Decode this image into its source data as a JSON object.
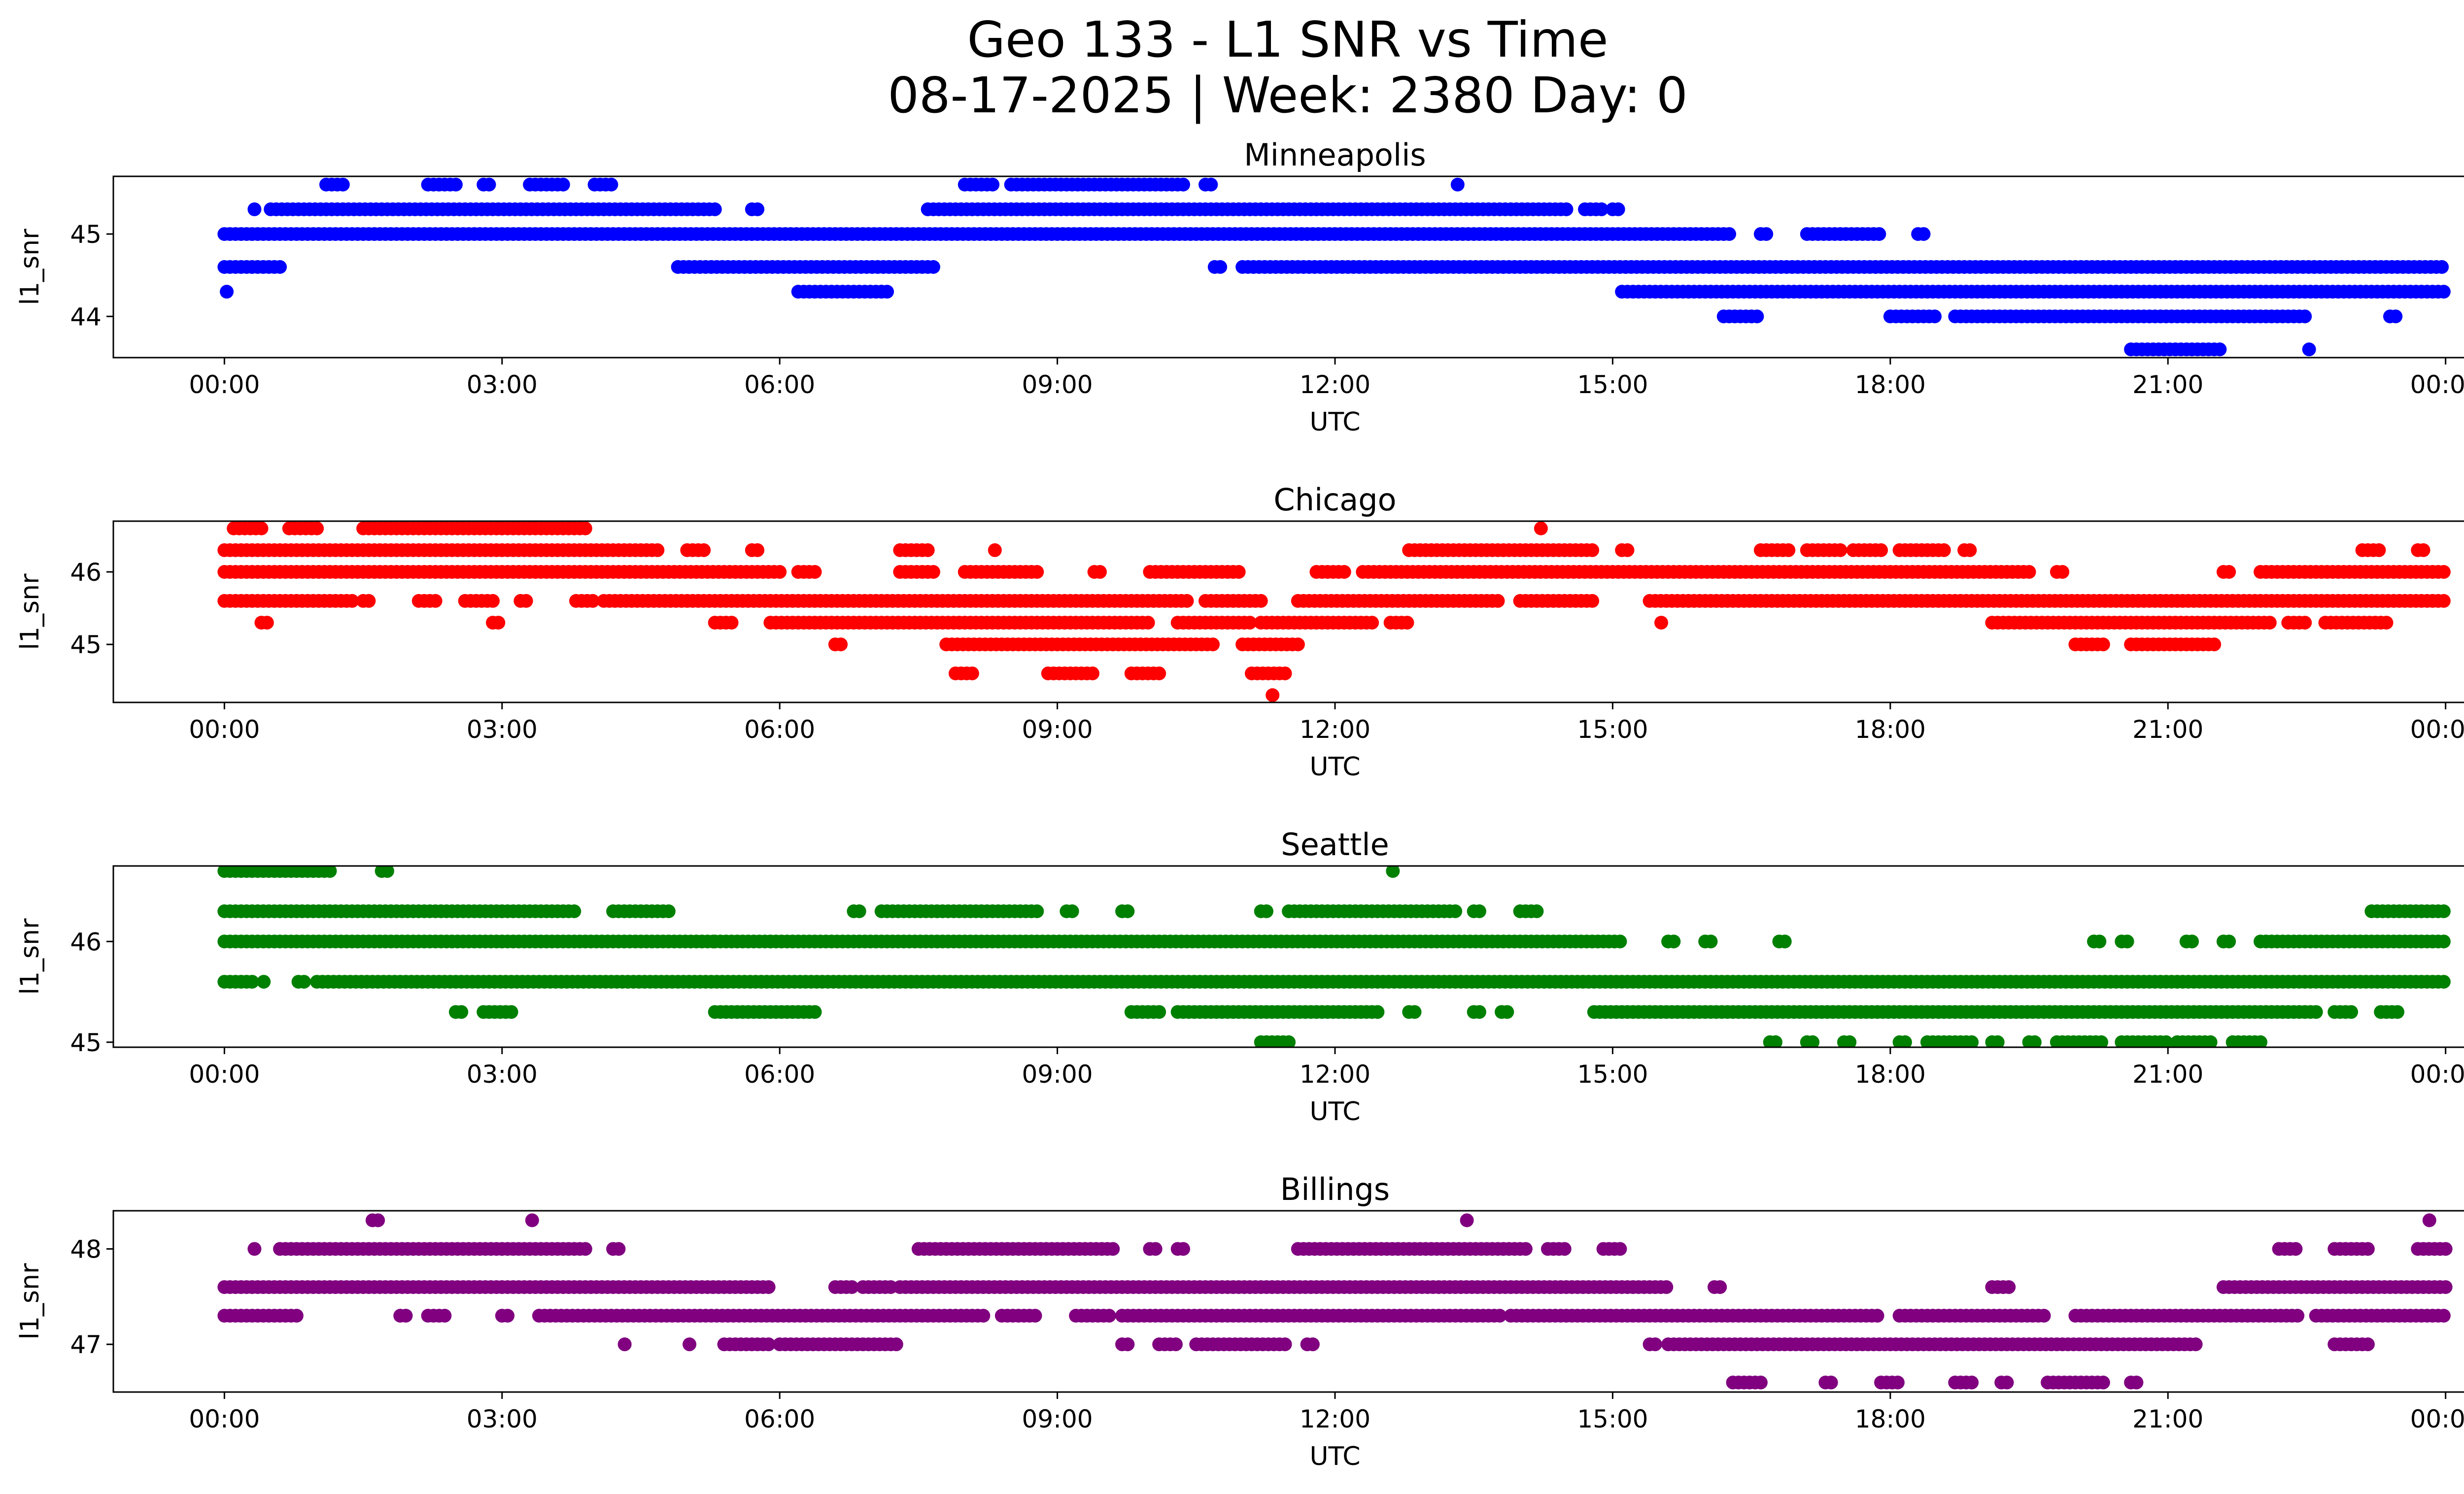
{
  "figure": {
    "title_line1": "Geo 133 - L1 SNR vs Time",
    "title_line2": "08-17-2025 | Week: 2380 Day: 0"
  },
  "chart_data": [
    {
      "type": "scatter",
      "title": "Minneapolis",
      "xlabel": "UTC",
      "ylabel": "l1_snr",
      "color": "#0000ff",
      "x_tick_labels": [
        "00:00",
        "03:00",
        "06:00",
        "09:00",
        "12:00",
        "15:00",
        "18:00",
        "21:00",
        "00:00"
      ],
      "xlim_hours": [
        -1.2,
        25.2
      ],
      "y_ticks": [
        44,
        45
      ],
      "ylim": [
        43.5,
        45.7
      ],
      "levels": [
        {
          "y": 45.6,
          "ranges": [
            [
              1.1,
              1.3
            ],
            [
              2.2,
              2.5
            ],
            [
              2.8,
              2.9
            ],
            [
              3.3,
              3.7
            ],
            [
              4.0,
              4.2
            ],
            [
              8.0,
              8.3
            ],
            [
              8.5,
              10.4
            ],
            [
              10.6,
              10.7
            ],
            [
              13.3,
              13.35
            ]
          ]
        },
        {
          "y": 45.3,
          "ranges": [
            [
              0.3,
              0.35
            ],
            [
              0.5,
              5.3
            ],
            [
              5.7,
              5.8
            ],
            [
              7.6,
              14.5
            ],
            [
              14.7,
              14.9
            ],
            [
              15.0,
              15.1
            ]
          ]
        },
        {
          "y": 45.0,
          "ranges": [
            [
              0.0,
              16.3
            ],
            [
              16.6,
              16.7
            ],
            [
              17.1,
              17.9
            ],
            [
              18.3,
              18.4
            ]
          ]
        },
        {
          "y": 44.6,
          "ranges": [
            [
              0.0,
              0.65
            ],
            [
              4.9,
              7.7
            ],
            [
              10.7,
              10.8
            ],
            [
              11.0,
              24.0
            ]
          ]
        },
        {
          "y": 44.3,
          "ranges": [
            [
              0.0,
              0.05
            ],
            [
              6.2,
              7.1
            ],
            [
              7.1,
              7.2
            ],
            [
              15.1,
              24.0
            ]
          ]
        },
        {
          "y": 44.0,
          "ranges": [
            [
              16.2,
              16.6
            ],
            [
              18.0,
              18.5
            ],
            [
              18.7,
              22.5
            ],
            [
              23.4,
              23.5
            ]
          ]
        },
        {
          "y": 43.6,
          "ranges": [
            [
              20.6,
              21.6
            ],
            [
              22.5,
              22.55
            ]
          ]
        }
      ]
    },
    {
      "type": "scatter",
      "title": "Chicago",
      "xlabel": "UTC",
      "ylabel": "l1_snr",
      "color": "#ff0000",
      "x_tick_labels": [
        "00:00",
        "03:00",
        "06:00",
        "09:00",
        "12:00",
        "15:00",
        "18:00",
        "21:00",
        "00:00"
      ],
      "xlim_hours": [
        -1.2,
        25.2
      ],
      "y_ticks": [
        45,
        46
      ],
      "ylim": [
        44.2,
        46.7
      ],
      "levels": [
        {
          "y": 46.6,
          "ranges": [
            [
              0.1,
              0.4
            ],
            [
              0.7,
              1.0
            ],
            [
              1.5,
              3.9
            ],
            [
              14.2,
              14.25
            ]
          ]
        },
        {
          "y": 46.3,
          "ranges": [
            [
              0.0,
              4.7
            ],
            [
              5.0,
              5.2
            ],
            [
              5.7,
              5.8
            ],
            [
              7.3,
              7.6
            ],
            [
              8.3,
              8.35
            ],
            [
              12.8,
              14.8
            ],
            [
              15.1,
              15.2
            ],
            [
              16.6,
              16.9
            ],
            [
              17.1,
              17.5
            ],
            [
              17.6,
              17.9
            ],
            [
              18.1,
              18.6
            ],
            [
              18.8,
              18.9
            ],
            [
              23.1,
              23.3
            ],
            [
              23.7,
              23.8
            ]
          ]
        },
        {
          "y": 46.0,
          "ranges": [
            [
              0.0,
              6.0
            ],
            [
              6.2,
              6.4
            ],
            [
              7.3,
              7.7
            ],
            [
              8.0,
              8.8
            ],
            [
              9.4,
              9.5
            ],
            [
              10.0,
              11.0
            ],
            [
              11.8,
              12.1
            ],
            [
              12.3,
              19.5
            ],
            [
              19.8,
              19.9
            ],
            [
              21.6,
              21.7
            ],
            [
              22.0,
              24.0
            ]
          ]
        },
        {
          "y": 45.6,
          "ranges": [
            [
              0.0,
              1.4
            ],
            [
              1.5,
              1.6
            ],
            [
              2.1,
              2.3
            ],
            [
              2.6,
              2.9
            ],
            [
              3.2,
              3.3
            ],
            [
              3.8,
              4.0
            ],
            [
              4.1,
              10.4
            ],
            [
              10.6,
              11.2
            ],
            [
              11.6,
              13.8
            ],
            [
              14.0,
              14.8
            ],
            [
              15.4,
              24.0
            ]
          ]
        },
        {
          "y": 45.3,
          "ranges": [
            [
              0.4,
              0.5
            ],
            [
              2.9,
              3.0
            ],
            [
              5.3,
              5.5
            ],
            [
              5.9,
              10.0
            ],
            [
              10.3,
              11.1
            ],
            [
              11.2,
              12.4
            ],
            [
              12.6,
              12.8
            ],
            [
              15.5,
              15.55
            ],
            [
              19.1,
              22.1
            ],
            [
              22.3,
              22.5
            ],
            [
              22.7,
              23.4
            ]
          ]
        },
        {
          "y": 45.0,
          "ranges": [
            [
              6.6,
              6.7
            ],
            [
              7.8,
              10.7
            ],
            [
              11.0,
              11.6
            ],
            [
              20.0,
              20.3
            ],
            [
              20.6,
              21.5
            ]
          ]
        },
        {
          "y": 44.6,
          "ranges": [
            [
              7.9,
              8.1
            ],
            [
              8.9,
              9.4
            ],
            [
              9.8,
              10.1
            ],
            [
              11.1,
              11.5
            ]
          ]
        },
        {
          "y": 44.3,
          "ranges": [
            [
              11.3,
              11.35
            ]
          ]
        }
      ]
    },
    {
      "type": "scatter",
      "title": "Seattle",
      "xlabel": "UTC",
      "ylabel": "l1_snr",
      "color": "#008000",
      "x_tick_labels": [
        "00:00",
        "03:00",
        "06:00",
        "09:00",
        "12:00",
        "15:00",
        "18:00",
        "21:00",
        "00:00"
      ],
      "xlim_hours": [
        -1.2,
        25.2
      ],
      "y_ticks": [
        45,
        46
      ],
      "ylim": [
        44.95,
        46.75
      ],
      "levels": [
        {
          "y": 46.7,
          "ranges": [
            [
              0.0,
              1.15
            ],
            [
              1.7,
              1.8
            ],
            [
              12.6,
              12.65
            ]
          ]
        },
        {
          "y": 46.3,
          "ranges": [
            [
              0.0,
              3.8
            ],
            [
              4.2,
              4.8
            ],
            [
              6.8,
              6.9
            ],
            [
              7.1,
              8.8
            ],
            [
              9.1,
              9.2
            ],
            [
              9.7,
              9.8
            ],
            [
              11.2,
              11.3
            ],
            [
              11.5,
              13.3
            ],
            [
              13.5,
              13.6
            ],
            [
              14.0,
              14.2
            ],
            [
              23.2,
              24.0
            ]
          ]
        },
        {
          "y": 46.0,
          "ranges": [
            [
              0.0,
              5.3
            ],
            [
              5.3,
              5.9
            ],
            [
              5.9,
              15.1
            ],
            [
              15.6,
              15.7
            ],
            [
              16.0,
              16.1
            ],
            [
              16.8,
              16.9
            ],
            [
              20.2,
              20.3
            ],
            [
              20.5,
              20.6
            ],
            [
              21.2,
              21.3
            ],
            [
              21.6,
              21.7
            ],
            [
              22.0,
              24.0
            ]
          ]
        },
        {
          "y": 45.6,
          "ranges": [
            [
              0.0,
              0.3
            ],
            [
              0.4,
              0.45
            ],
            [
              0.8,
              0.9
            ],
            [
              1.0,
              24.0
            ]
          ]
        },
        {
          "y": 45.3,
          "ranges": [
            [
              2.5,
              2.6
            ],
            [
              2.8,
              3.1
            ],
            [
              5.3,
              6.4
            ],
            [
              9.8,
              10.1
            ],
            [
              10.3,
              12.5
            ],
            [
              12.8,
              12.9
            ],
            [
              13.5,
              13.6
            ],
            [
              13.8,
              13.9
            ],
            [
              14.8,
              22.6
            ],
            [
              22.8,
              23.0
            ],
            [
              23.3,
              23.5
            ]
          ]
        },
        {
          "y": 45.0,
          "ranges": [
            [
              11.2,
              11.5
            ],
            [
              16.7,
              16.8
            ],
            [
              17.1,
              17.2
            ],
            [
              17.5,
              17.6
            ],
            [
              18.1,
              18.2
            ],
            [
              18.4,
              18.9
            ],
            [
              19.1,
              19.2
            ],
            [
              19.5,
              19.6
            ],
            [
              19.8,
              20.3
            ],
            [
              20.5,
              21.0
            ],
            [
              21.1,
              21.5
            ],
            [
              21.7,
              22.0
            ]
          ]
        }
      ]
    },
    {
      "type": "scatter",
      "title": "Billings",
      "xlabel": "UTC",
      "ylabel": "l1_snr",
      "color": "#800080",
      "x_tick_labels": [
        "00:00",
        "03:00",
        "06:00",
        "09:00",
        "12:00",
        "15:00",
        "18:00",
        "21:00",
        "00:00"
      ],
      "xlim_hours": [
        -1.2,
        25.2
      ],
      "y_ticks": [
        47,
        48
      ],
      "ylim": [
        46.5,
        48.4
      ],
      "levels": [
        {
          "y": 48.3,
          "ranges": [
            [
              1.6,
              1.7
            ],
            [
              3.3,
              3.35
            ],
            [
              13.4,
              13.45
            ],
            [
              23.8,
              23.85
            ]
          ]
        },
        {
          "y": 48.0,
          "ranges": [
            [
              0.3,
              0.35
            ],
            [
              0.6,
              3.9
            ],
            [
              4.2,
              4.3
            ],
            [
              7.5,
              9.6
            ],
            [
              10.0,
              10.1
            ],
            [
              10.3,
              10.4
            ],
            [
              11.6,
              14.1
            ],
            [
              14.3,
              14.5
            ],
            [
              14.9,
              15.1
            ],
            [
              22.2,
              22.4
            ],
            [
              22.8,
              23.2
            ],
            [
              23.7,
              24.0
            ]
          ]
        },
        {
          "y": 47.6,
          "ranges": [
            [
              0.0,
              5.9
            ],
            [
              6.6,
              6.8
            ],
            [
              6.9,
              7.2
            ],
            [
              7.3,
              15.6
            ],
            [
              16.1,
              16.2
            ],
            [
              19.1,
              19.3
            ],
            [
              21.6,
              24.0
            ]
          ]
        },
        {
          "y": 47.3,
          "ranges": [
            [
              0.0,
              0.8
            ],
            [
              1.9,
              2.0
            ],
            [
              2.2,
              2.4
            ],
            [
              3.0,
              3.1
            ],
            [
              3.4,
              8.2
            ],
            [
              8.4,
              8.8
            ],
            [
              9.2,
              9.6
            ],
            [
              9.7,
              13.8
            ],
            [
              13.9,
              17.9
            ],
            [
              18.1,
              19.7
            ],
            [
              20.0,
              22.4
            ],
            [
              22.6,
              24.0
            ]
          ]
        },
        {
          "y": 47.0,
          "ranges": [
            [
              4.3,
              4.35
            ],
            [
              5.0,
              5.05
            ],
            [
              5.4,
              5.9
            ],
            [
              6.0,
              7.3
            ],
            [
              9.7,
              9.8
            ],
            [
              10.1,
              10.3
            ],
            [
              10.5,
              11.5
            ],
            [
              11.7,
              11.8
            ],
            [
              15.4,
              15.5
            ],
            [
              15.6,
              21.3
            ],
            [
              22.8,
              23.2
            ]
          ]
        },
        {
          "y": 46.6,
          "ranges": [
            [
              16.3,
              16.6
            ],
            [
              17.3,
              17.4
            ],
            [
              17.9,
              18.1
            ],
            [
              18.7,
              18.9
            ],
            [
              19.2,
              19.3
            ],
            [
              19.7,
              20.3
            ],
            [
              20.6,
              20.7
            ]
          ]
        }
      ]
    }
  ]
}
